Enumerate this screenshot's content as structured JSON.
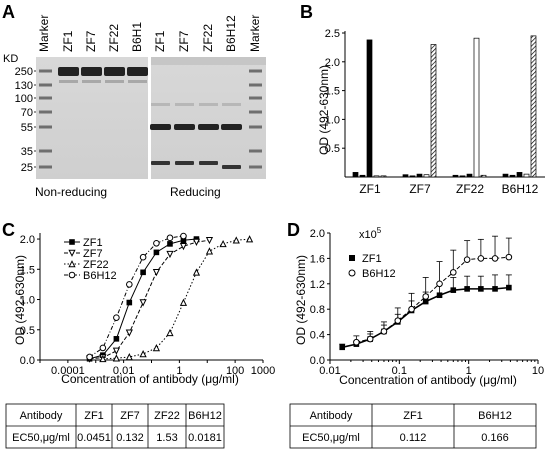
{
  "panels": {
    "A": {
      "letter": "A",
      "kd_label": "KD",
      "marker_label": "Marker",
      "lanes_left": [
        "Marker",
        "ZF1",
        "ZF7",
        "ZF22",
        "B6H1"
      ],
      "lanes_right": [
        "ZF1",
        "ZF7",
        "ZF22",
        "B6H12",
        "Marker"
      ],
      "mw_markers": [
        "250",
        "130",
        "100",
        "70",
        "55",
        "35",
        "25"
      ],
      "caption_left": "Non-reducing",
      "caption_right": "Reducing"
    },
    "B": {
      "letter": "B"
    },
    "C": {
      "letter": "C"
    },
    "D": {
      "letter": "D"
    }
  },
  "chart_data": [
    {
      "panel": "B",
      "type": "bar",
      "ylabel": "OD (492-630nm)",
      "ylim": [
        0,
        2.5
      ],
      "yticks": [
        "0.5",
        "1.0",
        "1.5",
        "2.0",
        "2.5"
      ],
      "categories": [
        "ZF1",
        "ZF7",
        "ZF22",
        "B6H12"
      ],
      "series": [
        {
          "style": "black-solid",
          "values": [
            0.08,
            0.04,
            0.03,
            0.05
          ]
        },
        {
          "style": "black-thin",
          "values": [
            0.03,
            0.02,
            0.02,
            0.03
          ]
        },
        {
          "style": "dark",
          "values": [
            2.38,
            0.05,
            0.05,
            0.08
          ]
        },
        {
          "style": "white",
          "values": [
            0.02,
            0.04,
            2.41,
            0.05
          ]
        },
        {
          "style": "hatched",
          "values": [
            0.02,
            2.3,
            0.03,
            2.45
          ]
        }
      ]
    },
    {
      "panel": "C",
      "type": "line",
      "xscale": "log",
      "xlabel": "Concentration of antibody (μg/ml)",
      "ylabel": "OD (492-630nm)",
      "xlim": [
        1e-05,
        1000
      ],
      "ylim": [
        0,
        2.1
      ],
      "xticks": [
        "0.0001",
        "0.01",
        "1",
        "100",
        "1000"
      ],
      "yticks": [
        "0.0",
        "0.5",
        "1.0",
        "1.5",
        "2.0"
      ],
      "series": [
        {
          "name": "ZF1",
          "marker": "square-filled",
          "dash": "solid",
          "ec50": 0.0451,
          "x": [
            0.0006,
            0.0018,
            0.0055,
            0.016,
            0.05,
            0.15,
            0.46,
            1.4,
            4.1
          ],
          "y": [
            0.02,
            0.08,
            0.35,
            0.95,
            1.45,
            1.78,
            1.92,
            1.98,
            2.0
          ]
        },
        {
          "name": "ZF7",
          "marker": "triangle-down-open",
          "dash": "dash",
          "ec50": 0.132,
          "x": [
            0.0006,
            0.0018,
            0.0055,
            0.016,
            0.05,
            0.15,
            0.46,
            1.4,
            4.1,
            12
          ],
          "y": [
            0.02,
            0.04,
            0.15,
            0.45,
            0.95,
            1.45,
            1.75,
            1.88,
            1.95,
            1.98
          ]
        },
        {
          "name": "ZF22",
          "marker": "triangle-up-open",
          "dash": "dot",
          "ec50": 1.53,
          "x": [
            0.0018,
            0.0055,
            0.016,
            0.05,
            0.15,
            0.46,
            1.4,
            4.1,
            12,
            37,
            110,
            330
          ],
          "y": [
            0.02,
            0.03,
            0.05,
            0.1,
            0.2,
            0.45,
            0.95,
            1.45,
            1.8,
            1.92,
            1.98,
            2.0
          ]
        },
        {
          "name": "B6H12",
          "marker": "circle-open",
          "dash": "dashdot",
          "ec50": 0.0181,
          "x": [
            0.0006,
            0.0018,
            0.0055,
            0.016,
            0.05,
            0.15,
            0.46,
            1.4
          ],
          "y": [
            0.05,
            0.2,
            0.7,
            1.25,
            1.7,
            1.93,
            2.02,
            2.05
          ]
        }
      ],
      "table": {
        "headers": [
          "Antibody",
          "ZF1",
          "ZF7",
          "ZF22",
          "B6H12"
        ],
        "row": [
          "EC50,μg/ml",
          "0.0451",
          "0.132",
          "1.53",
          "0.0181"
        ]
      }
    },
    {
      "panel": "D",
      "type": "line",
      "xscale": "log",
      "xlabel": "Concentration of antibody (μg/ml)",
      "ylabel": "OD (492-630nm)",
      "multiplier_base": "x10",
      "multiplier_exp": "5",
      "xlim": [
        0.01,
        10
      ],
      "ylim": [
        0,
        2.0
      ],
      "xticks": [
        "0.01",
        "0.1",
        "1",
        "10"
      ],
      "yticks": [
        "0.0",
        "0.4",
        "0.8",
        "1.2",
        "1.6",
        "2.0"
      ],
      "series": [
        {
          "name": "ZF1",
          "marker": "square-filled",
          "ec50": 0.112,
          "x": [
            0.015,
            0.024,
            0.038,
            0.06,
            0.095,
            0.15,
            0.24,
            0.38,
            0.6,
            0.95,
            1.5,
            2.4,
            3.8
          ],
          "y": [
            0.2,
            0.25,
            0.33,
            0.45,
            0.6,
            0.78,
            0.92,
            1.02,
            1.1,
            1.12,
            1.12,
            1.12,
            1.14
          ],
          "err": [
            0.05,
            0.05,
            0.08,
            0.1,
            0.12,
            0.15,
            0.15,
            0.18,
            0.2,
            0.2,
            0.2,
            0.22,
            0.2
          ]
        },
        {
          "name": "B6H12",
          "marker": "circle-open",
          "ec50": 0.166,
          "x": [
            0.024,
            0.038,
            0.06,
            0.095,
            0.15,
            0.24,
            0.38,
            0.6,
            0.95,
            1.5,
            2.4,
            3.8
          ],
          "y": [
            0.28,
            0.33,
            0.45,
            0.62,
            0.8,
            1.0,
            1.2,
            1.38,
            1.58,
            1.6,
            1.6,
            1.62
          ],
          "err": [
            0.1,
            0.12,
            0.15,
            0.2,
            0.25,
            0.3,
            0.35,
            0.35,
            0.3,
            0.3,
            0.35,
            0.3
          ]
        }
      ],
      "table": {
        "headers": [
          "Antibody",
          "ZF1",
          "B6H12"
        ],
        "row": [
          "EC50,μg/ml",
          "0.112",
          "0.166"
        ]
      }
    }
  ]
}
